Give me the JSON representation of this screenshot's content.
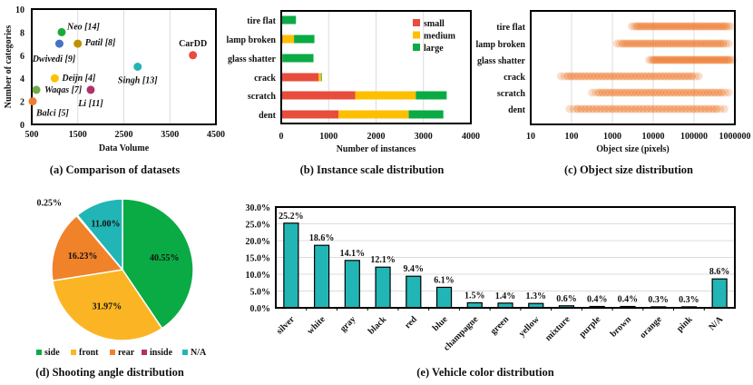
{
  "chart_data": [
    {
      "type": "scatter",
      "caption": "(a) Comparison of datasets",
      "xlabel": "Data Volume",
      "ylabel": "Number of categories",
      "xlim": [
        500,
        4500
      ],
      "ylim": [
        0,
        10
      ],
      "xticks": [
        "500",
        "1500",
        "2500",
        "3500",
        "4500"
      ],
      "yticks": [
        "0",
        "2",
        "4",
        "6",
        "8",
        "10"
      ],
      "grid": true,
      "points": [
        {
          "label": "Neo [14]",
          "x": 1150,
          "y": 8,
          "color": "#1aaa3a"
        },
        {
          "label": "Dwivedi [9]",
          "x": 1100,
          "y": 7,
          "color": "#4472c4"
        },
        {
          "label": "Patil [8]",
          "x": 1500,
          "y": 7,
          "color": "#bf9000"
        },
        {
          "label": "CarDD",
          "x": 4000,
          "y": 6,
          "color": "#e84c3d"
        },
        {
          "label": "Singh [13]",
          "x": 2800,
          "y": 5,
          "color": "#22b5b5"
        },
        {
          "label": "Deijn [4]",
          "x": 1000,
          "y": 4,
          "color": "#ffc000"
        },
        {
          "label": "Waqas [7]",
          "x": 600,
          "y": 3,
          "color": "#70ad47"
        },
        {
          "label": "Li [11]",
          "x": 1780,
          "y": 3,
          "color": "#b0306a"
        },
        {
          "label": "Balci [5]",
          "x": 520,
          "y": 2,
          "color": "#ed7d31"
        }
      ]
    },
    {
      "type": "bar",
      "orientation": "horizontal",
      "stacked": true,
      "caption": "(b) Instance scale distribution",
      "xlabel": "Number of instances",
      "xlim": [
        0,
        4000
      ],
      "xticks": [
        "0",
        "1000",
        "2000",
        "3000",
        "4000"
      ],
      "legend": "top-right",
      "grid": true,
      "categories": [
        "tire flat",
        "lamp broken",
        "glass shatter",
        "crack",
        "scratch",
        "dent"
      ],
      "series": [
        {
          "name": "small",
          "color": "#e84c3d",
          "values": [
            5,
            30,
            15,
            790,
            1560,
            1210
          ]
        },
        {
          "name": "medium",
          "color": "#fdbf00",
          "values": [
            5,
            240,
            10,
            50,
            1280,
            1480
          ]
        },
        {
          "name": "large",
          "color": "#0aab44",
          "values": [
            300,
            430,
            655,
            15,
            650,
            730
          ]
        }
      ]
    },
    {
      "type": "scatter",
      "caption": "(c) Object size distribution",
      "xlabel": "Object size (pixels)",
      "xscale": "log",
      "xlim": [
        10,
        1000000
      ],
      "xticks": [
        "10",
        "100",
        "1000",
        "10000",
        "100000",
        "1000000"
      ],
      "color": "#ed7d31",
      "grid": true,
      "categories": [
        "tire flat",
        "lamp broken",
        "glass shatter",
        "crack",
        "scratch",
        "dent"
      ],
      "ranges": [
        [
          3000,
          800000
        ],
        [
          1300,
          700000
        ],
        [
          8000,
          900000
        ],
        [
          55,
          130000
        ],
        [
          320,
          700000
        ],
        [
          90,
          550000
        ]
      ]
    },
    {
      "type": "pie",
      "caption": "(d) Shooting angle distribution",
      "legend": "bottom",
      "slices": [
        {
          "name": "side",
          "value": 40.55,
          "label": "40.55%",
          "color": "#0aab44"
        },
        {
          "name": "front",
          "value": 31.97,
          "label": "31.97%",
          "color": "#fbb524"
        },
        {
          "name": "rear",
          "value": 16.23,
          "label": "16.23%",
          "color": "#f0822a"
        },
        {
          "name": "inside",
          "value": 0.25,
          "label": "0.25%",
          "color": "#b0306a"
        },
        {
          "name": "N/A",
          "value": 11.0,
          "label": "11.00%",
          "color": "#22b5b5"
        }
      ]
    },
    {
      "type": "bar",
      "caption": "(e) Vehicle color distribution",
      "ylim": [
        0,
        30
      ],
      "color": "#22b5b5",
      "grid": true,
      "yticks": [
        "0.0%",
        "5.0%",
        "10.0%",
        "15.0%",
        "20.0%",
        "25.0%",
        "30.0%"
      ],
      "categories": [
        "silver",
        "white",
        "gray",
        "black",
        "red",
        "blue",
        "champagne",
        "green",
        "yellow",
        "mixture",
        "purple",
        "brown",
        "orange",
        "pink",
        "N/A"
      ],
      "values": [
        25.2,
        18.6,
        14.1,
        12.1,
        9.4,
        6.1,
        1.5,
        1.4,
        1.3,
        0.6,
        0.4,
        0.4,
        0.3,
        0.3,
        8.6
      ],
      "labels": [
        "25.2%",
        "18.6%",
        "14.1%",
        "12.1%",
        "9.4%",
        "6.1%",
        "1.5%",
        "1.4%",
        "1.3%",
        "0.6%",
        "0.4%",
        "0.4%",
        "0.3%",
        "0.3%",
        "8.6%"
      ]
    }
  ]
}
